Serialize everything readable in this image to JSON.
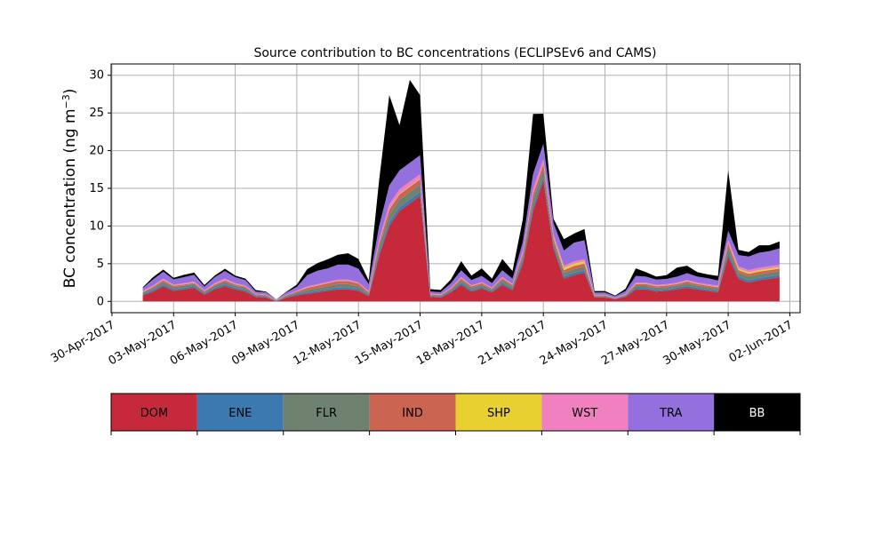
{
  "chart_data": {
    "type": "area",
    "title": "Source contribution to BC concentrations (ECLIPSEv6 and CAMS)",
    "ylabel": "BC concentration (ng m",
    "ylabel_sup": "−3",
    "ylabel_close": ")",
    "xlabel": "",
    "ylim": [
      -1.5,
      31.5
    ],
    "yticks": [
      0,
      5,
      10,
      15,
      20,
      25,
      30
    ],
    "xlim": [
      "2017-04-29T23:00",
      "2017-06-02T12:00"
    ],
    "xticks": [
      {
        "date": "2017-04-30",
        "label": "30-Apr-2017"
      },
      {
        "date": "2017-05-03",
        "label": "03-May-2017"
      },
      {
        "date": "2017-05-06",
        "label": "06-May-2017"
      },
      {
        "date": "2017-05-09",
        "label": "09-May-2017"
      },
      {
        "date": "2017-05-12",
        "label": "12-May-2017"
      },
      {
        "date": "2017-05-15",
        "label": "15-May-2017"
      },
      {
        "date": "2017-05-18",
        "label": "18-May-2017"
      },
      {
        "date": "2017-05-21",
        "label": "21-May-2017"
      },
      {
        "date": "2017-05-24",
        "label": "24-May-2017"
      },
      {
        "date": "2017-05-27",
        "label": "27-May-2017"
      },
      {
        "date": "2017-05-30",
        "label": "30-May-2017"
      },
      {
        "date": "2017-06-02",
        "label": "02-Jun-2017"
      }
    ],
    "grid": true,
    "stacked": true,
    "x": [
      "2017-05-01T12:00",
      "2017-05-02T00:00",
      "2017-05-02T12:00",
      "2017-05-03T00:00",
      "2017-05-03T12:00",
      "2017-05-04T00:00",
      "2017-05-04T12:00",
      "2017-05-05T00:00",
      "2017-05-05T12:00",
      "2017-05-06T00:00",
      "2017-05-06T12:00",
      "2017-05-07T00:00",
      "2017-05-07T12:00",
      "2017-05-08T00:00",
      "2017-05-08T12:00",
      "2017-05-09T00:00",
      "2017-05-09T12:00",
      "2017-05-10T00:00",
      "2017-05-10T12:00",
      "2017-05-11T00:00",
      "2017-05-11T12:00",
      "2017-05-12T00:00",
      "2017-05-12T12:00",
      "2017-05-13T00:00",
      "2017-05-13T12:00",
      "2017-05-14T00:00",
      "2017-05-14T12:00",
      "2017-05-15T00:00",
      "2017-05-15T12:00",
      "2017-05-16T00:00",
      "2017-05-16T12:00",
      "2017-05-17T00:00",
      "2017-05-17T12:00",
      "2017-05-18T00:00",
      "2017-05-18T12:00",
      "2017-05-19T00:00",
      "2017-05-19T12:00",
      "2017-05-20T00:00",
      "2017-05-20T12:00",
      "2017-05-21T00:00",
      "2017-05-21T12:00",
      "2017-05-22T00:00",
      "2017-05-22T12:00",
      "2017-05-23T00:00",
      "2017-05-23T12:00",
      "2017-05-24T00:00",
      "2017-05-24T12:00",
      "2017-05-25T00:00",
      "2017-05-25T12:00",
      "2017-05-26T00:00",
      "2017-05-26T12:00",
      "2017-05-27T00:00",
      "2017-05-27T12:00",
      "2017-05-28T00:00",
      "2017-05-28T12:00",
      "2017-05-29T00:00",
      "2017-05-29T12:00",
      "2017-05-30T00:00",
      "2017-05-30T12:00",
      "2017-05-31T00:00",
      "2017-05-31T12:00",
      "2017-06-01T00:00",
      "2017-06-01T12:00"
    ],
    "series": [
      {
        "name": "DOM",
        "color": "#c62a3a",
        "values": [
          0.8,
          1.3,
          2.0,
          1.4,
          1.6,
          1.8,
          0.9,
          1.6,
          2.0,
          1.6,
          1.3,
          0.6,
          0.5,
          0.0,
          0.5,
          0.8,
          1.0,
          1.2,
          1.4,
          1.6,
          1.6,
          1.4,
          0.7,
          6.0,
          10.0,
          12.0,
          13.0,
          14.0,
          0.6,
          0.5,
          1.2,
          2.2,
          1.3,
          1.7,
          1.2,
          2.2,
          1.5,
          5.0,
          12.0,
          16.0,
          7.0,
          3.0,
          3.5,
          3.8,
          0.5,
          0.5,
          0.3,
          0.6,
          1.6,
          1.6,
          1.3,
          1.4,
          1.6,
          1.8,
          1.6,
          1.4,
          1.2,
          6.0,
          3.0,
          2.5,
          2.8,
          3.0,
          3.2
        ]
      },
      {
        "name": "ENE",
        "color": "#3b79b0",
        "values": [
          0.15,
          0.2,
          0.25,
          0.2,
          0.2,
          0.2,
          0.15,
          0.2,
          0.25,
          0.2,
          0.2,
          0.1,
          0.1,
          0.05,
          0.1,
          0.15,
          0.2,
          0.2,
          0.2,
          0.25,
          0.25,
          0.2,
          0.15,
          0.35,
          0.5,
          0.5,
          0.5,
          0.5,
          0.1,
          0.1,
          0.15,
          0.25,
          0.2,
          0.2,
          0.15,
          0.25,
          0.2,
          0.35,
          0.5,
          0.5,
          0.35,
          0.3,
          0.3,
          0.3,
          0.1,
          0.1,
          0.05,
          0.1,
          0.2,
          0.2,
          0.2,
          0.2,
          0.2,
          0.25,
          0.2,
          0.2,
          0.2,
          0.4,
          0.3,
          0.3,
          0.3,
          0.3,
          0.3
        ]
      },
      {
        "name": "FLR",
        "color": "#6f8270",
        "values": [
          0.2,
          0.3,
          0.35,
          0.3,
          0.3,
          0.3,
          0.2,
          0.3,
          0.35,
          0.3,
          0.3,
          0.15,
          0.15,
          0.05,
          0.15,
          0.2,
          0.3,
          0.35,
          0.4,
          0.45,
          0.45,
          0.4,
          0.2,
          0.8,
          1.0,
          1.0,
          1.0,
          1.0,
          0.15,
          0.15,
          0.2,
          0.35,
          0.3,
          0.3,
          0.2,
          0.35,
          0.3,
          0.6,
          1.0,
          1.0,
          0.6,
          0.5,
          0.5,
          0.5,
          0.1,
          0.1,
          0.05,
          0.1,
          0.3,
          0.3,
          0.3,
          0.3,
          0.3,
          0.35,
          0.3,
          0.3,
          0.3,
          0.8,
          0.5,
          0.5,
          0.5,
          0.5,
          0.5
        ]
      },
      {
        "name": "IND",
        "color": "#cc6452",
        "values": [
          0.1,
          0.15,
          0.2,
          0.15,
          0.15,
          0.15,
          0.1,
          0.15,
          0.2,
          0.15,
          0.15,
          0.1,
          0.1,
          0.05,
          0.1,
          0.15,
          0.3,
          0.35,
          0.4,
          0.4,
          0.4,
          0.35,
          0.2,
          0.5,
          0.7,
          0.7,
          0.7,
          0.7,
          0.1,
          0.1,
          0.15,
          0.25,
          0.2,
          0.2,
          0.15,
          0.25,
          0.2,
          0.4,
          0.7,
          0.7,
          0.4,
          0.35,
          0.4,
          0.4,
          0.1,
          0.1,
          0.05,
          0.1,
          0.2,
          0.2,
          0.2,
          0.2,
          0.2,
          0.25,
          0.2,
          0.2,
          0.2,
          0.5,
          0.35,
          0.35,
          0.35,
          0.35,
          0.35
        ]
      },
      {
        "name": "SHP",
        "color": "#e8d030",
        "values": [
          0.02,
          0.02,
          0.03,
          0.02,
          0.02,
          0.02,
          0.02,
          0.02,
          0.03,
          0.02,
          0.02,
          0.01,
          0.01,
          0.0,
          0.01,
          0.02,
          0.03,
          0.03,
          0.03,
          0.03,
          0.03,
          0.03,
          0.02,
          0.05,
          0.08,
          0.08,
          0.08,
          0.08,
          0.02,
          0.02,
          0.02,
          0.03,
          0.03,
          0.03,
          0.02,
          0.03,
          0.03,
          0.05,
          0.08,
          0.1,
          0.1,
          0.3,
          0.3,
          0.3,
          0.02,
          0.02,
          0.01,
          0.02,
          0.03,
          0.03,
          0.03,
          0.03,
          0.03,
          0.04,
          0.03,
          0.03,
          0.03,
          0.08,
          0.2,
          0.2,
          0.2,
          0.2,
          0.2
        ]
      },
      {
        "name": "WST",
        "color": "#f080c0",
        "values": [
          0.1,
          0.15,
          0.2,
          0.15,
          0.15,
          0.15,
          0.1,
          0.15,
          0.2,
          0.15,
          0.15,
          0.05,
          0.05,
          0.02,
          0.05,
          0.1,
          0.15,
          0.15,
          0.15,
          0.15,
          0.15,
          0.15,
          0.1,
          0.4,
          0.6,
          0.6,
          0.6,
          0.6,
          0.05,
          0.05,
          0.1,
          0.15,
          0.1,
          0.15,
          0.1,
          0.15,
          0.1,
          0.3,
          0.6,
          0.6,
          0.4,
          0.3,
          0.3,
          0.3,
          0.05,
          0.05,
          0.02,
          0.05,
          0.15,
          0.15,
          0.15,
          0.15,
          0.15,
          0.15,
          0.15,
          0.15,
          0.15,
          0.4,
          0.3,
          0.3,
          0.3,
          0.3,
          0.3
        ]
      },
      {
        "name": "TRA",
        "color": "#9370dd",
        "values": [
          0.4,
          0.8,
          0.9,
          0.7,
          0.8,
          0.9,
          0.5,
          0.8,
          1.0,
          0.8,
          0.7,
          0.3,
          0.3,
          0.1,
          0.3,
          0.5,
          1.5,
          1.8,
          1.8,
          2.0,
          2.0,
          1.8,
          0.9,
          1.8,
          2.5,
          2.5,
          2.5,
          2.5,
          0.3,
          0.3,
          0.6,
          0.9,
          0.7,
          0.8,
          0.6,
          0.9,
          0.7,
          1.2,
          2.0,
          2.0,
          1.5,
          2.0,
          2.5,
          2.5,
          0.3,
          0.3,
          0.2,
          0.4,
          0.9,
          0.8,
          0.7,
          0.7,
          0.8,
          0.9,
          0.8,
          0.8,
          0.7,
          1.2,
          1.5,
          1.8,
          2.0,
          2.0,
          2.2
        ]
      },
      {
        "name": "BB",
        "color": "#000000",
        "values": [
          0.1,
          0.3,
          0.3,
          0.2,
          0.3,
          0.3,
          0.2,
          0.2,
          0.3,
          0.2,
          0.2,
          0.2,
          0.1,
          0.0,
          0.1,
          0.3,
          0.8,
          1.0,
          1.2,
          1.3,
          1.5,
          1.3,
          0.5,
          6.0,
          12.0,
          6.0,
          11.0,
          8.0,
          0.3,
          0.3,
          0.5,
          1.2,
          0.6,
          1.0,
          0.6,
          1.5,
          1.0,
          3.0,
          8.0,
          4.0,
          0.6,
          1.5,
          1.2,
          1.5,
          0.2,
          0.2,
          0.1,
          0.3,
          1.0,
          0.6,
          0.4,
          0.5,
          1.2,
          1.0,
          0.6,
          0.5,
          0.6,
          8.0,
          0.7,
          0.6,
          1.0,
          0.8,
          0.9
        ]
      }
    ],
    "legend": {
      "placement": "bottom",
      "entries": [
        "DOM",
        "ENE",
        "FLR",
        "IND",
        "SHP",
        "WST",
        "TRA",
        "BB"
      ]
    }
  }
}
